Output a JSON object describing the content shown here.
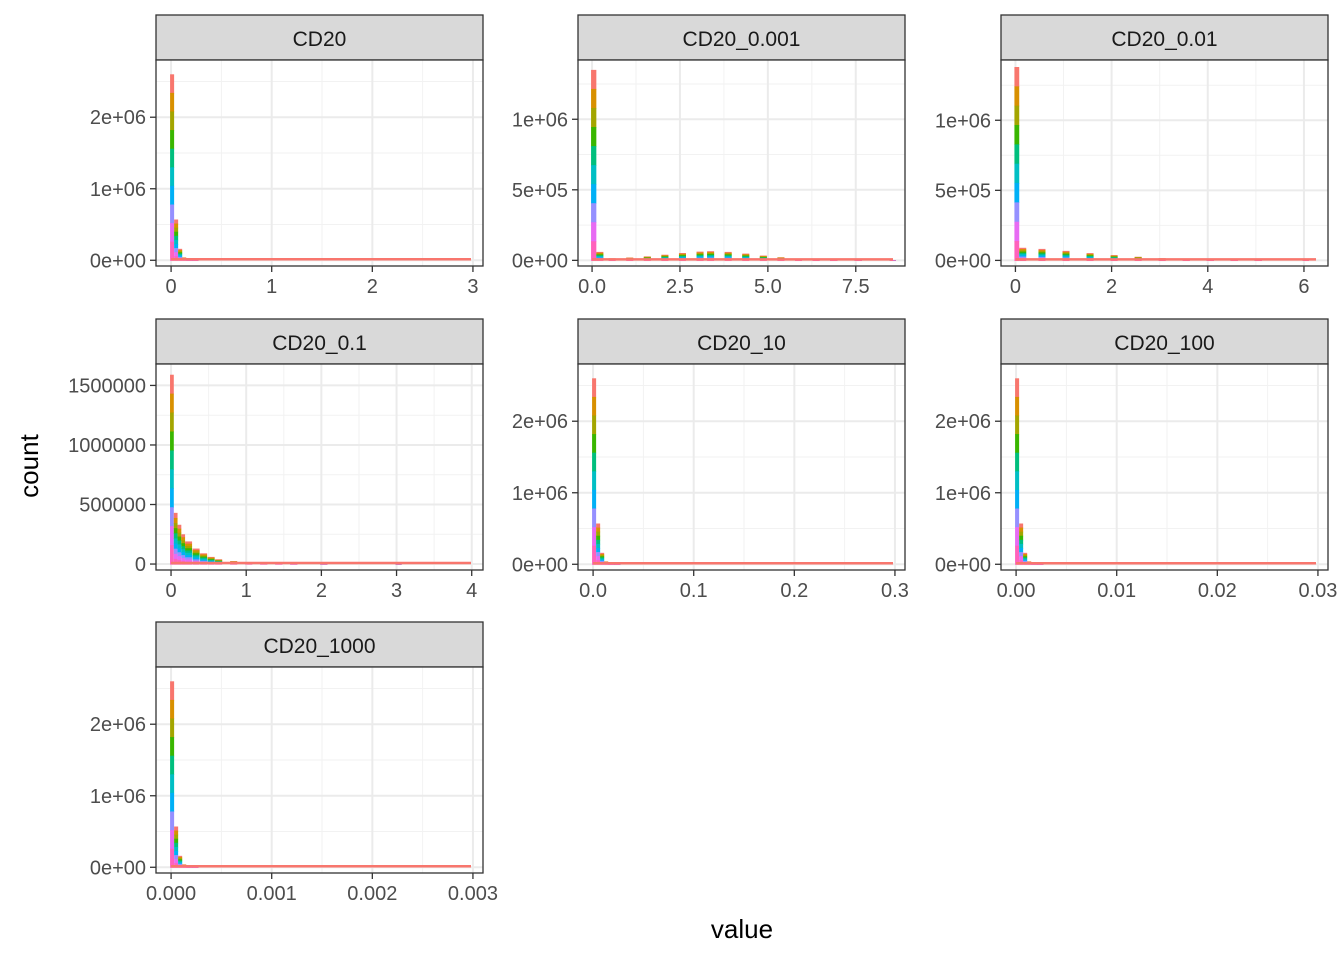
{
  "chart_data": {
    "type": "bar",
    "xlabel": "value",
    "ylabel": "count",
    "grid": true,
    "legend": "none",
    "series_colors": [
      "#F8766D",
      "#D89000",
      "#A3A500",
      "#39B600",
      "#00BF7D",
      "#00BFC4",
      "#00B0F6",
      "#9590FF",
      "#E76BF3",
      "#FF62BC"
    ],
    "facets": [
      {
        "label": "CD20",
        "xlim": [
          -0.15,
          3.1
        ],
        "ylim": [
          -80000,
          2800000
        ],
        "xticks": [
          0,
          1,
          2,
          3
        ],
        "xtick_labels": [
          "0",
          "1",
          "2",
          "3"
        ],
        "yticks": [
          0,
          1000000,
          2000000
        ],
        "ytick_labels": [
          "0e+00",
          "1e+06",
          "2e+06"
        ],
        "bins": [
          {
            "x": 0.0,
            "count": 2600000
          },
          {
            "x": 0.04,
            "count": 570000
          },
          {
            "x": 0.08,
            "count": 160000
          },
          {
            "x": 0.12,
            "count": 40000
          },
          {
            "x": 0.16,
            "count": 12000
          },
          {
            "x": 0.22,
            "count": 4000
          }
        ]
      },
      {
        "label": "CD20_0.001",
        "xlim": [
          -0.4,
          8.9
        ],
        "ylim": [
          -40000,
          1420000
        ],
        "xticks": [
          0,
          2.5,
          5,
          7.5
        ],
        "xtick_labels": [
          "0.0",
          "2.5",
          "5.0",
          "7.5"
        ],
        "yticks": [
          0,
          500000,
          1000000
        ],
        "ytick_labels": [
          "0e+00",
          "5e+05",
          "1e+06"
        ],
        "bins": [
          {
            "x": 0.0,
            "count": 1350000
          },
          {
            "x": 0.15,
            "count": 60000
          },
          {
            "x": 0.5,
            "count": 15000
          },
          {
            "x": 1.0,
            "count": 20000
          },
          {
            "x": 1.5,
            "count": 28000
          },
          {
            "x": 2.0,
            "count": 40000
          },
          {
            "x": 2.5,
            "count": 52000
          },
          {
            "x": 3.0,
            "count": 62000
          },
          {
            "x": 3.3,
            "count": 65000
          },
          {
            "x": 3.8,
            "count": 60000
          },
          {
            "x": 4.3,
            "count": 48000
          },
          {
            "x": 4.8,
            "count": 34000
          },
          {
            "x": 5.3,
            "count": 22000
          },
          {
            "x": 5.8,
            "count": 12000
          },
          {
            "x": 6.3,
            "count": 6000
          },
          {
            "x": 6.8,
            "count": 3000
          },
          {
            "x": 7.5,
            "count": 1000
          },
          {
            "x": 8.5,
            "count": 300
          }
        ]
      },
      {
        "label": "CD20_0.01",
        "xlim": [
          -0.3,
          6.5
        ],
        "ylim": [
          -40000,
          1430000
        ],
        "xticks": [
          0,
          2,
          4,
          6
        ],
        "xtick_labels": [
          "0",
          "2",
          "4",
          "6"
        ],
        "yticks": [
          0,
          500000,
          1000000
        ],
        "ytick_labels": [
          "0e+00",
          "5e+05",
          "1e+06"
        ],
        "bins": [
          {
            "x": 0.0,
            "count": 1380000
          },
          {
            "x": 0.1,
            "count": 90000
          },
          {
            "x": 0.5,
            "count": 82000
          },
          {
            "x": 1.0,
            "count": 68000
          },
          {
            "x": 1.5,
            "count": 52000
          },
          {
            "x": 2.0,
            "count": 38000
          },
          {
            "x": 2.5,
            "count": 26000
          },
          {
            "x": 3.0,
            "count": 16000
          },
          {
            "x": 3.5,
            "count": 9000
          },
          {
            "x": 4.0,
            "count": 5000
          },
          {
            "x": 4.5,
            "count": 2500
          },
          {
            "x": 5.0,
            "count": 1200
          },
          {
            "x": 6.0,
            "count": 300
          }
        ]
      },
      {
        "label": "CD20_0.1",
        "xlim": [
          -0.2,
          4.15
        ],
        "ylim": [
          -50000,
          1680000
        ],
        "xticks": [
          0,
          1,
          2,
          3,
          4
        ],
        "xtick_labels": [
          "0",
          "1",
          "2",
          "3",
          "4"
        ],
        "yticks": [
          0,
          500000,
          1000000,
          1500000
        ],
        "ytick_labels": [
          "0",
          "500000",
          "1000000",
          "1500000"
        ],
        "bins": [
          {
            "x": 0.0,
            "count": 1590000
          },
          {
            "x": 0.05,
            "count": 430000
          },
          {
            "x": 0.1,
            "count": 330000
          },
          {
            "x": 0.15,
            "count": 250000
          },
          {
            "x": 0.2,
            "count": 190000
          },
          {
            "x": 0.3,
            "count": 130000
          },
          {
            "x": 0.4,
            "count": 90000
          },
          {
            "x": 0.5,
            "count": 60000
          },
          {
            "x": 0.6,
            "count": 40000
          },
          {
            "x": 0.8,
            "count": 25000
          },
          {
            "x": 1.0,
            "count": 15000
          },
          {
            "x": 1.2,
            "count": 10000
          },
          {
            "x": 1.4,
            "count": 6000
          },
          {
            "x": 1.6,
            "count": 3000
          },
          {
            "x": 2.0,
            "count": 1500
          },
          {
            "x": 3.0,
            "count": 500
          }
        ]
      },
      {
        "label": "CD20_10",
        "xlim": [
          -0.015,
          0.31
        ],
        "ylim": [
          -80000,
          2800000
        ],
        "xticks": [
          0,
          0.1,
          0.2,
          0.3
        ],
        "xtick_labels": [
          "0.0",
          "0.1",
          "0.2",
          "0.3"
        ],
        "yticks": [
          0,
          1000000,
          2000000
        ],
        "ytick_labels": [
          "0e+00",
          "1e+06",
          "2e+06"
        ],
        "bins": [
          {
            "x": 0.0,
            "count": 2600000
          },
          {
            "x": 0.004,
            "count": 570000
          },
          {
            "x": 0.008,
            "count": 160000
          },
          {
            "x": 0.012,
            "count": 40000
          },
          {
            "x": 0.016,
            "count": 12000
          },
          {
            "x": 0.022,
            "count": 4000
          }
        ]
      },
      {
        "label": "CD20_100",
        "xlim": [
          -0.0015,
          0.031
        ],
        "ylim": [
          -80000,
          2800000
        ],
        "xticks": [
          0,
          0.01,
          0.02,
          0.03
        ],
        "xtick_labels": [
          "0.00",
          "0.01",
          "0.02",
          "0.03"
        ],
        "yticks": [
          0,
          1000000,
          2000000
        ],
        "ytick_labels": [
          "0e+00",
          "1e+06",
          "2e+06"
        ],
        "bins": [
          {
            "x": 0.0,
            "count": 2600000
          },
          {
            "x": 0.0004,
            "count": 570000
          },
          {
            "x": 0.0008,
            "count": 160000
          },
          {
            "x": 0.0012,
            "count": 40000
          },
          {
            "x": 0.0016,
            "count": 12000
          },
          {
            "x": 0.0022,
            "count": 4000
          }
        ]
      },
      {
        "label": "CD20_1000",
        "xlim": [
          -0.00015,
          0.0031
        ],
        "ylim": [
          -80000,
          2800000
        ],
        "xticks": [
          0,
          0.001,
          0.002,
          0.003
        ],
        "xtick_labels": [
          "0.000",
          "0.001",
          "0.002",
          "0.003"
        ],
        "yticks": [
          0,
          1000000,
          2000000
        ],
        "ytick_labels": [
          "0e+00",
          "1e+06",
          "2e+06"
        ],
        "bins": [
          {
            "x": 0.0,
            "count": 2600000
          },
          {
            "x": 4e-05,
            "count": 570000
          },
          {
            "x": 8e-05,
            "count": 160000
          },
          {
            "x": 0.00012,
            "count": 40000
          },
          {
            "x": 0.00016,
            "count": 12000
          },
          {
            "x": 0.00022,
            "count": 4000
          }
        ]
      }
    ]
  }
}
